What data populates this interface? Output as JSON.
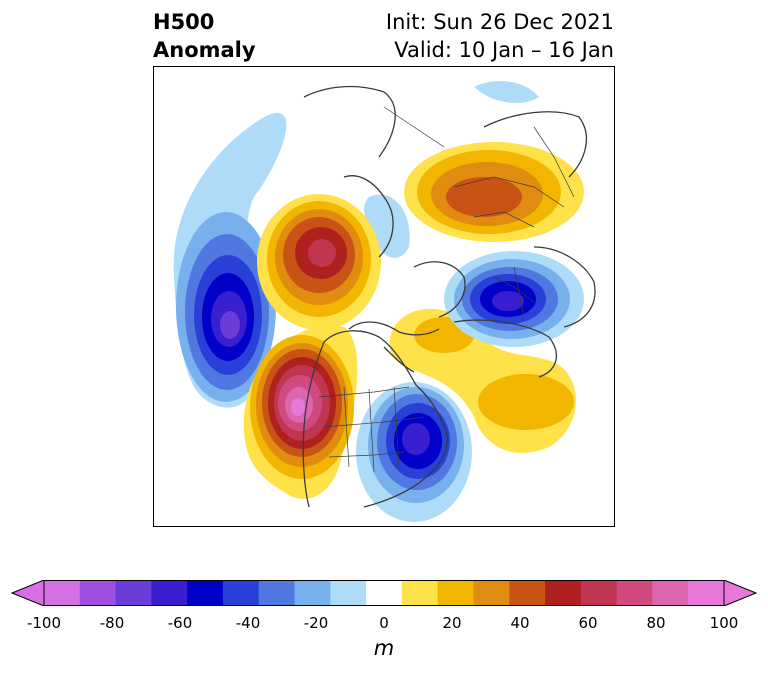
{
  "title": {
    "left_line1": "H500",
    "left_line2": "Anomaly",
    "right_line1": "Init: Sun 26 Dec 2021",
    "right_line2": "Valid: 10 Jan – 16 Jan"
  },
  "colorbar": {
    "units": "m",
    "ticks": [
      "-100",
      "-80",
      "-60",
      "-40",
      "-20",
      "0",
      "20",
      "40",
      "60",
      "80",
      "100"
    ],
    "levels": [
      -100,
      -90,
      -80,
      -70,
      -60,
      -50,
      -40,
      -30,
      -20,
      -10,
      10,
      20,
      30,
      40,
      50,
      60,
      70,
      80,
      90,
      100
    ],
    "colors": [
      "#d56fe3",
      "#a050e0",
      "#6a3cd8",
      "#3a1fd0",
      "#0000c8",
      "#2840d8",
      "#5078e0",
      "#78b0ee",
      "#aedcf8",
      "#ffffff",
      "#ffe14a",
      "#f2b600",
      "#e08c10",
      "#c85314",
      "#b0201e",
      "#c03550",
      "#d04a80",
      "#dd66b0",
      "#e878d8"
    ],
    "extend": "both"
  },
  "anomalies": [
    {
      "name": "pacific-low",
      "sign": "negative",
      "peak": -90
    },
    {
      "name": "western-na-high",
      "sign": "positive",
      "peak": 90
    },
    {
      "name": "eastern-na-low",
      "sign": "negative",
      "peak": -70
    },
    {
      "name": "alaska-high",
      "sign": "positive",
      "peak": 60
    },
    {
      "name": "siberia-high",
      "sign": "positive",
      "peak": 50
    },
    {
      "name": "europe-low",
      "sign": "negative",
      "peak": -60
    },
    {
      "name": "atlantic-high",
      "sign": "positive",
      "peak": 20
    }
  ]
}
